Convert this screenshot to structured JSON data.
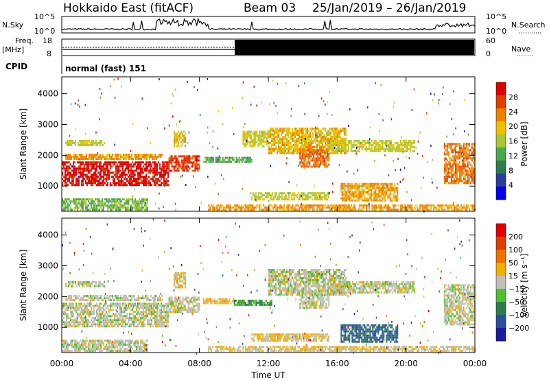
{
  "header": {
    "title": "Hokkaido East (fitACF)",
    "beam": "Beam 03",
    "dates": "25/Jan/2019 – 26/Jan/2019"
  },
  "status": {
    "nsky_label": "N.Sky",
    "nsearch_label": "N.Search",
    "nsky_ticks": [
      "10^5",
      "10^0"
    ],
    "nsearch_ticks": [
      "10^5",
      "10^0"
    ],
    "freq_label_top": "Freq.",
    "freq_label_unit": "[MHz]",
    "freq_ticks": [
      "18",
      "8"
    ],
    "nave_label": "Nave",
    "nave_ticks": [
      "60",
      "0"
    ],
    "cpid_label": "CPID",
    "cpid_text": "normal (fast) 151"
  },
  "colors": {
    "power_scale": [
      "#0000ee",
      "#2a3f9a",
      "#2e7d4f",
      "#4aaa50",
      "#a8c830",
      "#f0c000",
      "#f08000",
      "#e04000",
      "#e00000"
    ],
    "velocity_scale": [
      "#1a1aa0",
      "#2a50a0",
      "#2e7d4f",
      "#50c030",
      "#c0c0b8",
      "#f0b000",
      "#f07000",
      "#e04000",
      "#e00000"
    ]
  },
  "chart_data": [
    {
      "type": "heatmap",
      "name": "power",
      "ylabel": "Slant Range [km]",
      "yticks": [
        "1000",
        "2000",
        "3000",
        "4000"
      ],
      "ylim": [
        180,
        4550
      ],
      "xlim": [
        "00:00",
        "24:00"
      ],
      "colorbar_label": "Power [dB]",
      "colorbar_ticks": [
        "28",
        "24",
        "20",
        "16",
        "12",
        "8",
        "4"
      ],
      "colorbar_range": [
        0,
        32
      ],
      "regions": [
        {
          "t0": 0.0,
          "t1": 6.2,
          "r0": 1000,
          "r1": 1800,
          "value": 30
        },
        {
          "t0": 0.2,
          "t1": 5.8,
          "r0": 1850,
          "r1": 2050,
          "value": 22
        },
        {
          "t0": 0.2,
          "t1": 2.5,
          "r0": 2300,
          "r1": 2500,
          "value": 18
        },
        {
          "t0": 6.2,
          "t1": 8.0,
          "r0": 1500,
          "r1": 2000,
          "value": 27
        },
        {
          "t0": 6.5,
          "t1": 7.2,
          "r0": 2300,
          "r1": 2800,
          "value": 20
        },
        {
          "t0": 8.2,
          "t1": 11.0,
          "r0": 1750,
          "r1": 1950,
          "value": 12
        },
        {
          "t0": 10.5,
          "t1": 12.0,
          "r0": 2300,
          "r1": 2800,
          "value": 18
        },
        {
          "t0": 12.0,
          "t1": 16.5,
          "r0": 2050,
          "r1": 2900,
          "value": 20
        },
        {
          "t0": 13.8,
          "t1": 15.5,
          "r0": 1650,
          "r1": 2200,
          "value": 24
        },
        {
          "t0": 15.5,
          "t1": 20.5,
          "r0": 2100,
          "r1": 2500,
          "value": 17
        },
        {
          "t0": 16.2,
          "t1": 19.5,
          "r0": 550,
          "r1": 1100,
          "value": 22
        },
        {
          "t0": 11.0,
          "t1": 15.5,
          "r0": 550,
          "r1": 800,
          "value": 17
        },
        {
          "t0": 8.5,
          "t1": 24.0,
          "r0": 200,
          "r1": 400,
          "value": 22
        },
        {
          "t0": 22.2,
          "t1": 24.0,
          "r0": 1100,
          "r1": 2400,
          "value": 24
        },
        {
          "t0": 0.0,
          "t1": 5.0,
          "r0": 250,
          "r1": 600,
          "value": 14
        }
      ]
    },
    {
      "type": "heatmap",
      "name": "velocity",
      "ylabel": "Slant Range [km]",
      "yticks": [
        "1000",
        "2000",
        "3000",
        "4000"
      ],
      "ylim": [
        180,
        4550
      ],
      "xlim": [
        "00:00",
        "24:00"
      ],
      "xticks": [
        "00:00",
        "04:00",
        "08:00",
        "12:00",
        "16:00",
        "20:00",
        "00:00"
      ],
      "xlabel": "Time UT",
      "colorbar_label": "Velocity [m s⁻¹]",
      "colorbar_ticks": [
        "200",
        "100",
        "50",
        "15",
        "−15",
        "−50",
        "−100",
        "−200"
      ],
      "colorbar_range": [
        -250,
        250
      ],
      "regions": [
        {
          "t0": 0.0,
          "t1": 6.2,
          "r0": 1000,
          "r1": 1800,
          "value": 0
        },
        {
          "t0": 0.2,
          "t1": 5.8,
          "r0": 1850,
          "r1": 2050,
          "value": 0
        },
        {
          "t0": 0.2,
          "t1": 2.5,
          "r0": 2300,
          "r1": 2500,
          "value": 0
        },
        {
          "t0": 6.2,
          "t1": 8.0,
          "r0": 1500,
          "r1": 2000,
          "value": 0
        },
        {
          "t0": 6.5,
          "t1": 7.2,
          "r0": 2300,
          "r1": 2800,
          "value": 40
        },
        {
          "t0": 8.2,
          "t1": 10.0,
          "r0": 1750,
          "r1": 1950,
          "value": 40
        },
        {
          "t0": 10.0,
          "t1": 12.2,
          "r0": 1700,
          "r1": 1900,
          "value": -80
        },
        {
          "t0": 12.0,
          "t1": 16.5,
          "r0": 2050,
          "r1": 2900,
          "value": 0
        },
        {
          "t0": 13.8,
          "t1": 15.5,
          "r0": 1650,
          "r1": 2200,
          "value": 0
        },
        {
          "t0": 15.5,
          "t1": 20.5,
          "r0": 2100,
          "r1": 2500,
          "value": 0
        },
        {
          "t0": 16.2,
          "t1": 19.5,
          "r0": 550,
          "r1": 1100,
          "value": -150
        },
        {
          "t0": 11.0,
          "t1": 15.5,
          "r0": 550,
          "r1": 800,
          "value": 40
        },
        {
          "t0": 8.5,
          "t1": 24.0,
          "r0": 200,
          "r1": 400,
          "value": 30
        },
        {
          "t0": 22.2,
          "t1": 24.0,
          "r0": 1100,
          "r1": 2400,
          "value": 0
        },
        {
          "t0": 0.0,
          "t1": 5.0,
          "r0": 250,
          "r1": 600,
          "value": 0
        }
      ]
    }
  ]
}
